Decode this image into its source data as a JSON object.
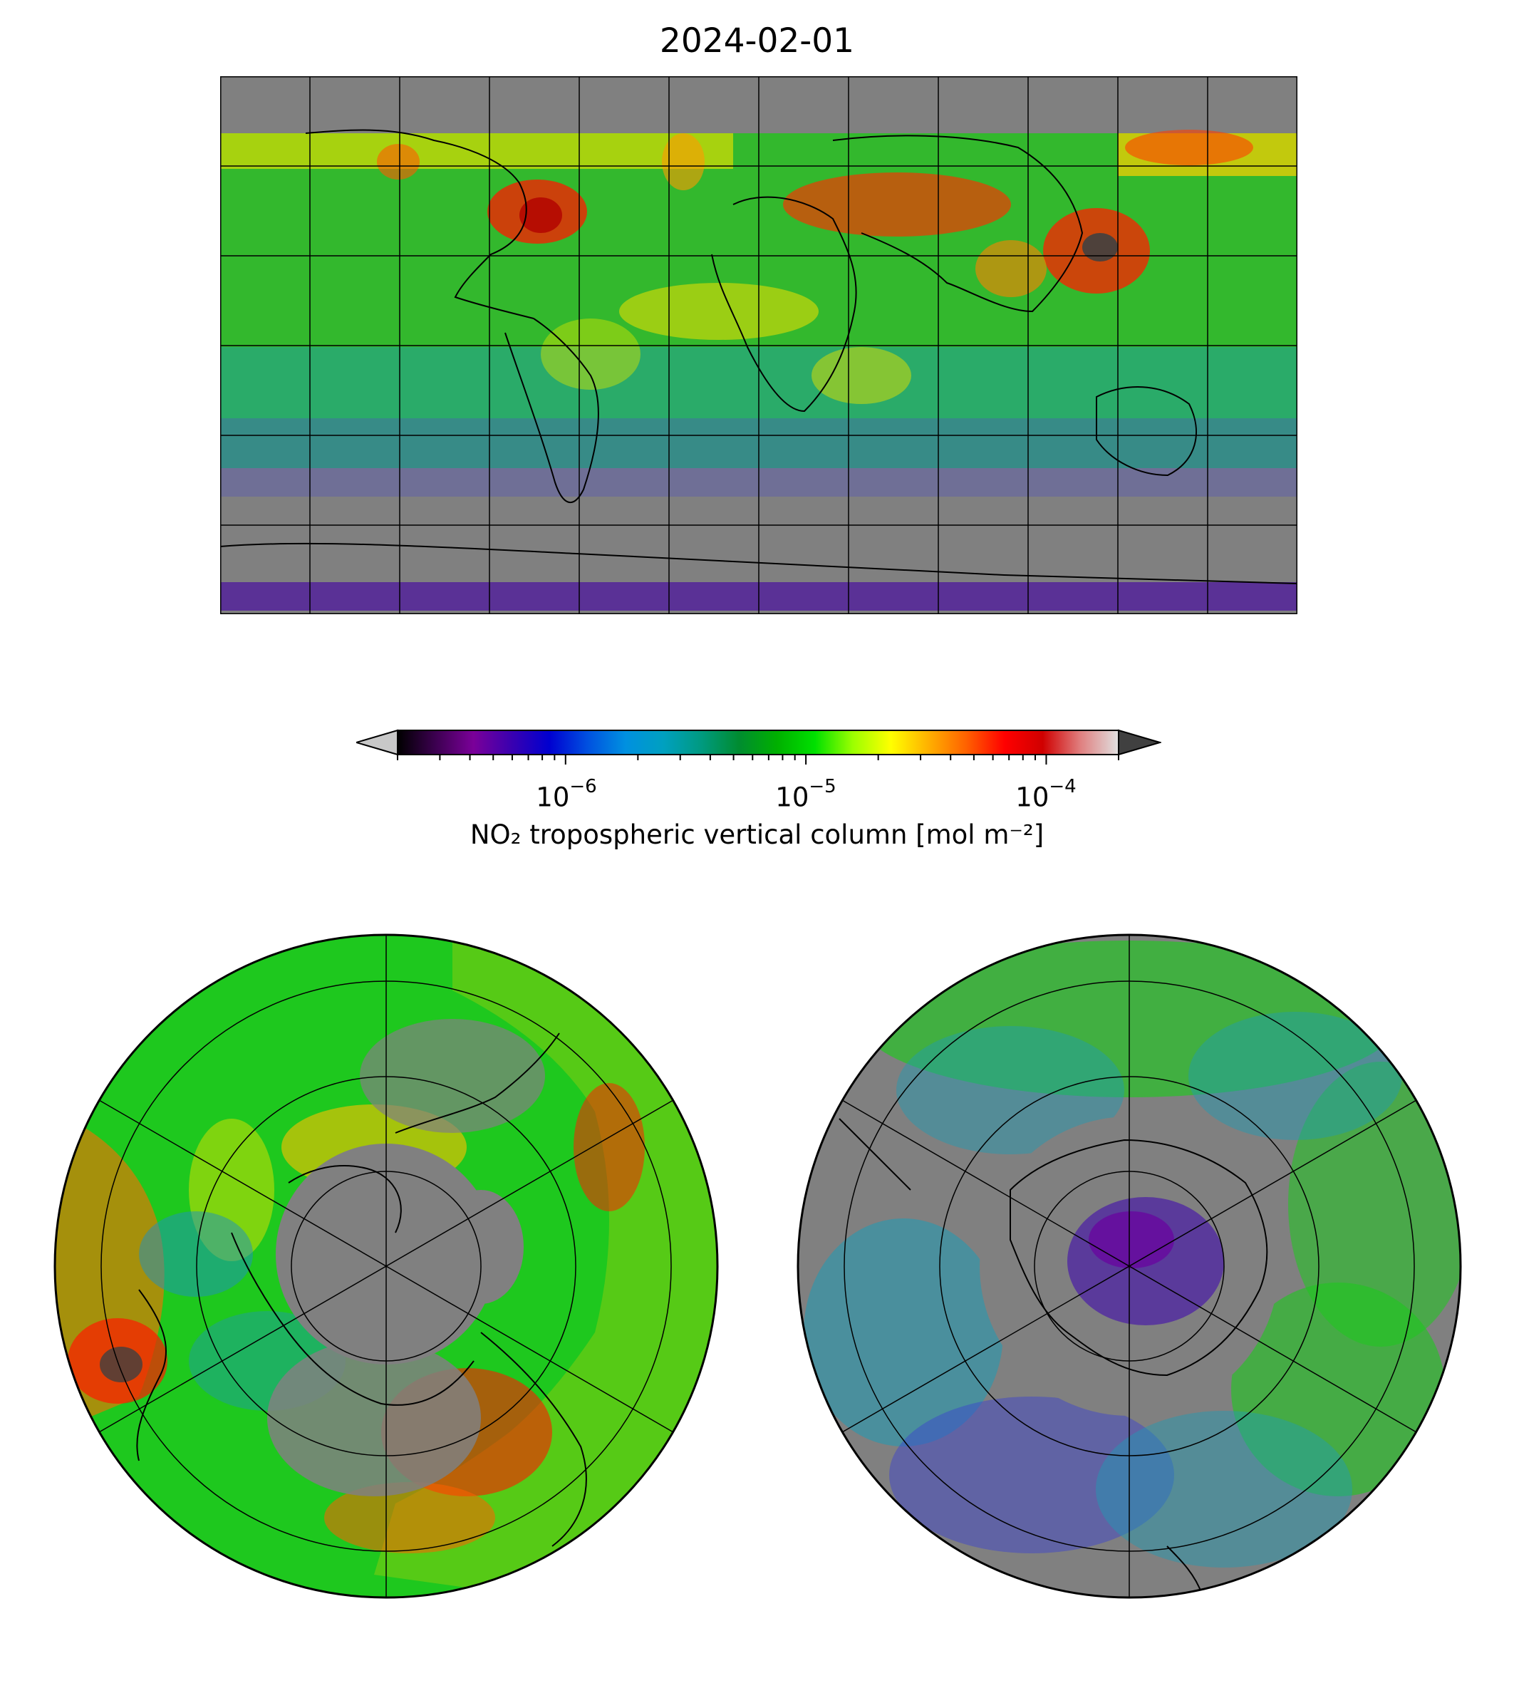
{
  "title": "2024-02-01",
  "colorbar": {
    "label": "NO₂ tropospheric vertical column [mol m⁻²]",
    "scale": "log",
    "range": [
      2e-07,
      0.0002
    ],
    "extend": "both",
    "major_ticks": [
      {
        "value": 1e-06,
        "base": "10",
        "exponent": "−6"
      },
      {
        "value": 1e-05,
        "base": "10",
        "exponent": "−5"
      },
      {
        "value": 0.0001,
        "base": "10",
        "exponent": "−4"
      }
    ],
    "colors": [
      "#000000",
      "#3c0050",
      "#7a0099",
      "#3a00b0",
      "#0000d0",
      "#0050e0",
      "#0090e0",
      "#00a0c0",
      "#009a80",
      "#008c30",
      "#00b000",
      "#00e000",
      "#9cff00",
      "#ffff00",
      "#ffb000",
      "#ff6000",
      "#ff0000",
      "#d00000",
      "#e08080",
      "#e0e0e0"
    ],
    "under_color": "#c8c8c8",
    "over_color": "#404040"
  },
  "maps": {
    "global": {
      "projection": "plate-carree",
      "missing_color": "#808080"
    },
    "north_polar": {
      "projection": "north-polar-stereographic"
    },
    "south_polar": {
      "projection": "south-polar-stereographic"
    }
  }
}
